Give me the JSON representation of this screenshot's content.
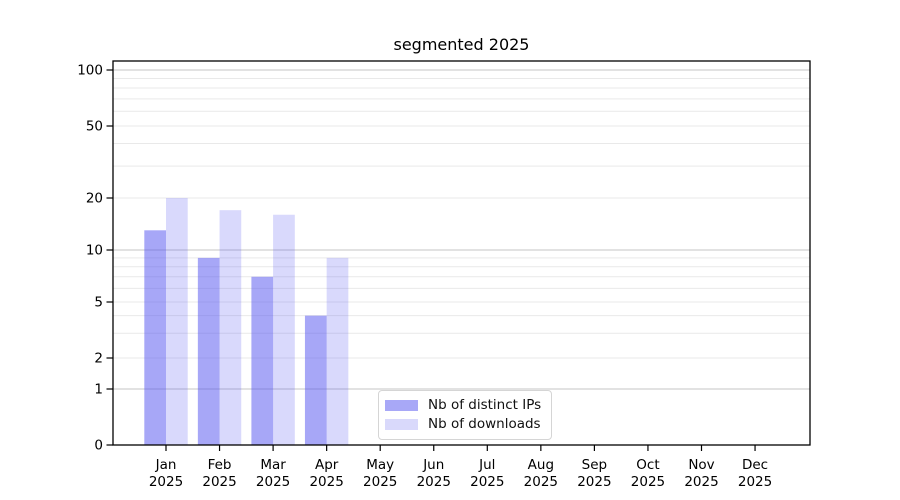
{
  "chart_data": {
    "type": "bar",
    "title": "segmented 2025",
    "categories": [
      "Jan",
      "Feb",
      "Mar",
      "Apr",
      "May",
      "Jun",
      "Jul",
      "Aug",
      "Sep",
      "Oct",
      "Nov",
      "Dec"
    ],
    "category_year": "2025",
    "series": [
      {
        "name": "Nb of distinct IPs",
        "color": "rgba(80,80,240,0.5)",
        "legend_color": "#a8a8f7",
        "values": [
          13,
          9,
          7,
          4,
          0,
          0,
          0,
          0,
          0,
          0,
          0,
          0
        ]
      },
      {
        "name": "Nb of downloads",
        "color": "rgba(80,80,240,0.22)",
        "legend_color": "#d9d9fb",
        "values": [
          20,
          17,
          16,
          9,
          0,
          0,
          0,
          0,
          0,
          0,
          0,
          0
        ]
      }
    ],
    "y_axis": {
      "scale": "log-like (0,1 then logarithmic)",
      "labeled_ticks": [
        0,
        1,
        2,
        5,
        10,
        20,
        50,
        100
      ],
      "grid_major": [
        1,
        10,
        100
      ],
      "grid_minor": [
        2,
        3,
        4,
        5,
        6,
        7,
        8,
        9,
        20,
        30,
        40,
        50,
        60,
        70,
        80,
        90
      ],
      "ylim": [
        0,
        115
      ]
    },
    "legend_position": "lower center",
    "grid": true
  },
  "colors": {
    "grid_major": "#c6c6c6",
    "grid_minor": "#e9e9e9",
    "spine": "#000000",
    "text": "#000000",
    "background": "#ffffff"
  }
}
